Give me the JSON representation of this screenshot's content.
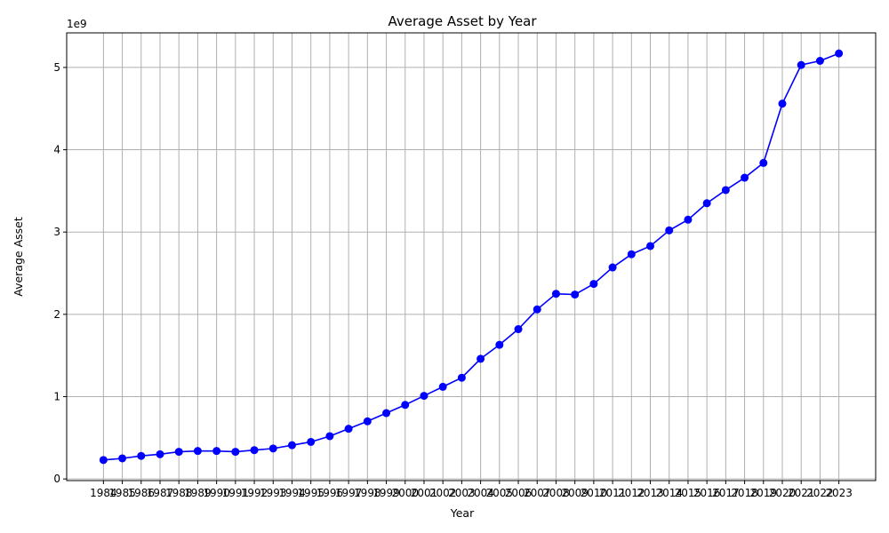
{
  "chart_data": {
    "type": "line",
    "title": "Average Asset by Year",
    "xlabel": "Year",
    "ylabel": "Average Asset",
    "y_multiplier_label": "1e9",
    "x": [
      "1984",
      "1985",
      "1986",
      "1987",
      "1988",
      "1989",
      "1990",
      "1991",
      "1992",
      "1993",
      "1994",
      "1995",
      "1996",
      "1997",
      "1998",
      "1999",
      "2000",
      "2001",
      "2002",
      "2003",
      "2004",
      "2005",
      "2006",
      "2007",
      "2008",
      "2009",
      "2010",
      "2011",
      "2012",
      "2013",
      "2014",
      "2015",
      "2016",
      "2017",
      "2018",
      "2019",
      "2020",
      "2021",
      "2022",
      "2023"
    ],
    "series": [
      {
        "color": "#0000ff",
        "marker": "circle",
        "values": [
          0.23,
          0.25,
          0.28,
          0.3,
          0.33,
          0.34,
          0.34,
          0.33,
          0.35,
          0.37,
          0.41,
          0.45,
          0.52,
          0.61,
          0.7,
          0.8,
          0.9,
          1.01,
          1.12,
          1.23,
          1.46,
          1.63,
          1.82,
          2.06,
          2.25,
          2.24,
          2.37,
          2.57,
          2.73,
          2.83,
          3.02,
          3.15,
          3.35,
          3.51,
          3.66,
          3.84,
          4.56,
          5.03,
          5.08,
          5.17
        ]
      }
    ],
    "y_ticks": [
      "0",
      "1",
      "2",
      "3",
      "4",
      "5"
    ],
    "ylim": [
      -0.02,
      5.42
    ],
    "grid": true,
    "legend": "none"
  }
}
